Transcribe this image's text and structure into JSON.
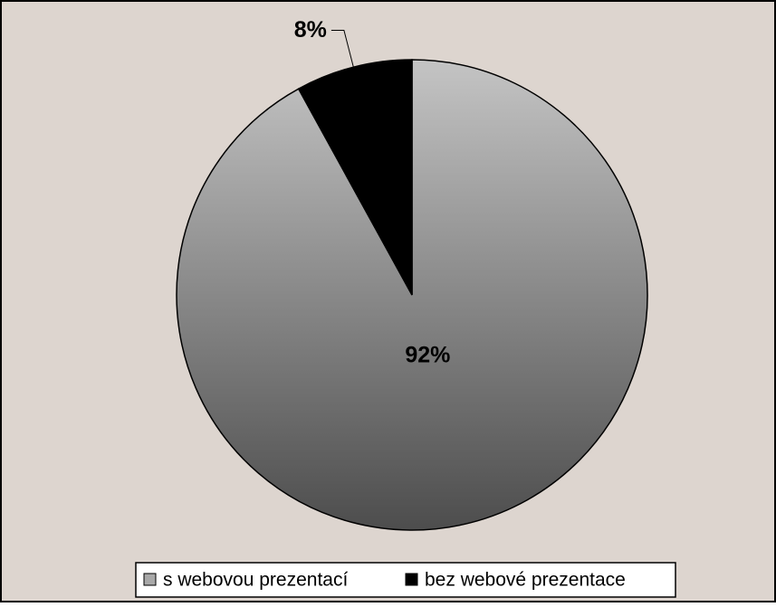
{
  "chart_data": {
    "type": "pie",
    "categories": [
      "s webovou prezentací",
      "bez webové prezentace"
    ],
    "values": [
      92,
      8
    ],
    "value_labels": [
      "92%",
      "8%"
    ],
    "colors": [
      "#c4c4c4",
      "#000000"
    ],
    "legend": "bottom"
  }
}
